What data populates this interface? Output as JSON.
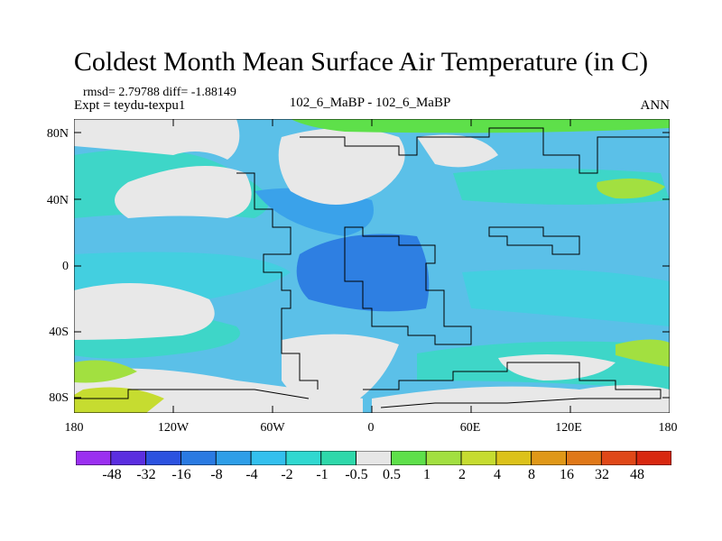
{
  "title": "Coldest Month Mean Surface Air Temperature (in C)",
  "stats": "rmsd= 2.79788 diff= -1.88149",
  "experiment": "Expt = teydu-texpu1",
  "comparison": "102_6_MaBP - 102_6_MaBP",
  "season": "ANN",
  "map": {
    "lat_labels": [
      "80N",
      "40N",
      "0",
      "40S",
      "80S"
    ],
    "lon_labels": [
      "180",
      "120W",
      "60W",
      "0",
      "60E",
      "120E",
      "180"
    ],
    "land_color": "#e8e8e8",
    "ocean_color": "#5bc0e8"
  },
  "colorbar": {
    "colors": [
      "#9b30f0",
      "#5b2ee0",
      "#2c52e0",
      "#2a7ae2",
      "#2e9ee8",
      "#33c0ee",
      "#30d8d0",
      "#2ed8aa",
      "#e6e6e6",
      "#5ee04a",
      "#a2e040",
      "#c6dc30",
      "#dcc21a",
      "#e09818",
      "#e07818",
      "#e04818",
      "#d82810"
    ],
    "labels": [
      "-48",
      "-32",
      "-16",
      "-8",
      "-4",
      "-2",
      "-1",
      "-0.5",
      "0.5",
      "1",
      "2",
      "4",
      "8",
      "16",
      "32",
      "48"
    ]
  }
}
